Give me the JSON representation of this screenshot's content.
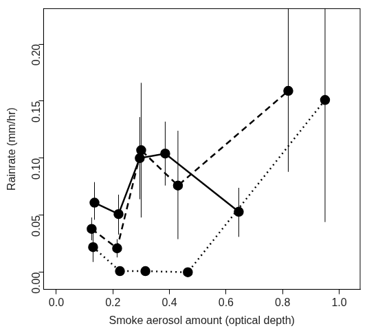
{
  "chart_data": {
    "type": "line",
    "x_label": "Smoke aerosol amount (optical depth)",
    "y_label": "Rainrate (mm/hr)",
    "xlim": [
      -0.045,
      1.074
    ],
    "ylim": [
      -0.015,
      0.231
    ],
    "xticks": [
      {
        "value": 0,
        "label": "0.0"
      },
      {
        "value": 0.2,
        "label": "0.2"
      },
      {
        "value": 0.4,
        "label": "0.4"
      },
      {
        "value": 0.6,
        "label": "0.6"
      },
      {
        "value": 0.8,
        "label": "0.8"
      },
      {
        "value": 1,
        "label": "1.0"
      }
    ],
    "yticks": [
      {
        "value": 0,
        "label": "0.00"
      },
      {
        "value": 0.05,
        "label": "0.05"
      },
      {
        "value": 0.1,
        "label": "0.10"
      },
      {
        "value": 0.15,
        "label": "0.15"
      },
      {
        "value": 0.2,
        "label": "0.20"
      }
    ],
    "grid": false,
    "series": [
      {
        "color": "#000000",
        "line_style": "solid",
        "marker": "circle",
        "x": [
          0.135,
          0.22,
          0.295,
          0.385,
          0.645
        ],
        "values": [
          0.061,
          0.051,
          0.1,
          0.104,
          0.053
        ],
        "error_low": [
          0.046,
          0.033,
          0.064,
          0.076,
          0.031
        ],
        "error_high": [
          0.079,
          0.068,
          0.136,
          0.132,
          0.074
        ]
      },
      {
        "color": "#000000",
        "line_style": "dashed",
        "marker": "circle",
        "x": [
          0.125,
          0.215,
          0.3,
          0.43,
          0.82
        ],
        "values": [
          0.038,
          0.021,
          0.107,
          0.076,
          0.159
        ],
        "error_low": [
          0.028,
          0.013,
          0.048,
          0.029,
          0.088
        ],
        "error_high": [
          0.048,
          0.029,
          0.166,
          0.124,
          0.26
        ]
      },
      {
        "color": "#000000",
        "line_style": "dotted",
        "marker": "circle",
        "x": [
          0.13,
          0.225,
          0.315,
          0.465,
          0.95
        ],
        "values": [
          0.022,
          0.001,
          0.001,
          0.0,
          0.151
        ],
        "error_low": [
          0.009,
          null,
          null,
          null,
          0.044
        ],
        "error_high": [
          0.035,
          null,
          null,
          null,
          0.26
        ]
      }
    ]
  }
}
